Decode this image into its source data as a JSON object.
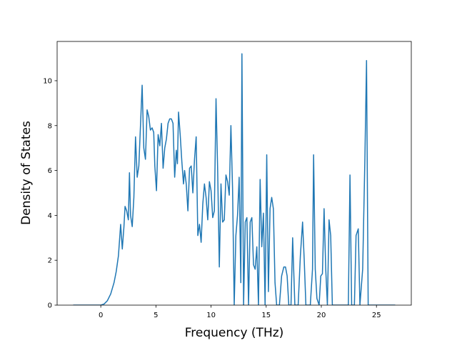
{
  "chart_data": {
    "type": "line",
    "xlabel": "Frequency (THz)",
    "ylabel": "Density of States",
    "x": [
      -2.5,
      0,
      0.3,
      0.6,
      0.9,
      1.2,
      1.4,
      1.6,
      1.8,
      1.95,
      2.1,
      2.2,
      2.35,
      2.5,
      2.6,
      2.7,
      2.85,
      3.0,
      3.15,
      3.3,
      3.45,
      3.6,
      3.75,
      3.9,
      4.05,
      4.2,
      4.35,
      4.5,
      4.65,
      4.8,
      4.9,
      5.05,
      5.2,
      5.35,
      5.5,
      5.65,
      5.8,
      5.95,
      6.1,
      6.25,
      6.4,
      6.55,
      6.7,
      6.85,
      6.95,
      7.05,
      7.2,
      7.35,
      7.5,
      7.6,
      7.75,
      7.9,
      8.05,
      8.2,
      8.35,
      8.5,
      8.65,
      8.8,
      8.95,
      9.1,
      9.25,
      9.4,
      9.55,
      9.7,
      9.85,
      10.0,
      10.15,
      10.3,
      10.45,
      10.6,
      10.75,
      10.9,
      11.05,
      11.2,
      11.35,
      11.5,
      11.65,
      11.8,
      11.95,
      12.1,
      12.25,
      12.4,
      12.55,
      12.7,
      12.8,
      12.95,
      13.1,
      13.25,
      13.4,
      13.55,
      13.7,
      13.85,
      14.0,
      14.15,
      14.3,
      14.45,
      14.6,
      14.75,
      14.9,
      15.05,
      15.2,
      15.35,
      15.5,
      15.65,
      15.8,
      15.95,
      16.2,
      16.4,
      16.6,
      16.75,
      16.9,
      17.05,
      17.25,
      17.4,
      17.6,
      17.9,
      18.1,
      18.3,
      18.45,
      18.6,
      19.0,
      19.2,
      19.3,
      19.45,
      19.6,
      19.8,
      19.95,
      20.1,
      20.25,
      20.4,
      20.55,
      20.7,
      20.85,
      21.0,
      22.45,
      22.6,
      22.75,
      23.0,
      23.15,
      23.35,
      23.5,
      23.75,
      23.95,
      24.1,
      24.25,
      26.7
    ],
    "series": [
      {
        "color": "#1f77b4",
        "values": [
          0,
          0,
          0.05,
          0.2,
          0.5,
          1.0,
          1.5,
          2.2,
          3.6,
          2.5,
          3.5,
          4.4,
          4.2,
          3.8,
          5.9,
          4.0,
          3.5,
          4.8,
          7.5,
          5.7,
          6.2,
          8.0,
          9.8,
          7.0,
          6.5,
          8.7,
          8.4,
          7.8,
          7.9,
          7.7,
          6.2,
          5.1,
          7.6,
          7.1,
          8.1,
          6.1,
          7.0,
          7.4,
          8.1,
          8.3,
          8.3,
          8.1,
          5.7,
          6.9,
          6.3,
          8.6,
          7.6,
          6.4,
          5.4,
          6.0,
          5.4,
          4.2,
          6.1,
          6.2,
          5.0,
          6.5,
          7.5,
          3.1,
          3.6,
          2.8,
          4.5,
          5.4,
          4.8,
          3.8,
          5.5,
          5.1,
          3.9,
          4.2,
          9.2,
          6.0,
          1.7,
          5.4,
          3.7,
          3.8,
          5.8,
          5.5,
          4.9,
          8.0,
          5.2,
          0,
          3.1,
          4.0,
          5.7,
          1.0,
          11.2,
          0,
          3.7,
          3.9,
          0,
          3.7,
          3.9,
          1.8,
          1.6,
          2.6,
          0,
          5.6,
          2.6,
          4.1,
          0,
          6.7,
          0.6,
          4.3,
          4.8,
          4.3,
          1.0,
          0,
          0,
          1.3,
          1.7,
          1.7,
          1.3,
          0,
          0,
          3.0,
          0,
          0,
          2.2,
          3.7,
          2.0,
          0,
          0,
          1.6,
          6.7,
          1.6,
          0.3,
          0,
          1.3,
          1.4,
          4.3,
          1.6,
          0,
          3.8,
          3.1,
          0,
          0,
          5.8,
          0,
          0,
          3.1,
          3.4,
          0,
          1.6,
          6.5,
          10.9,
          0,
          0
        ]
      }
    ],
    "xlim": [
      -3.96,
      28.16
    ],
    "xticks": [
      0,
      5,
      10,
      15,
      20,
      25
    ],
    "ylim": [
      0,
      11.75
    ],
    "yticks": [
      0,
      2,
      4,
      6,
      8,
      10
    ]
  }
}
